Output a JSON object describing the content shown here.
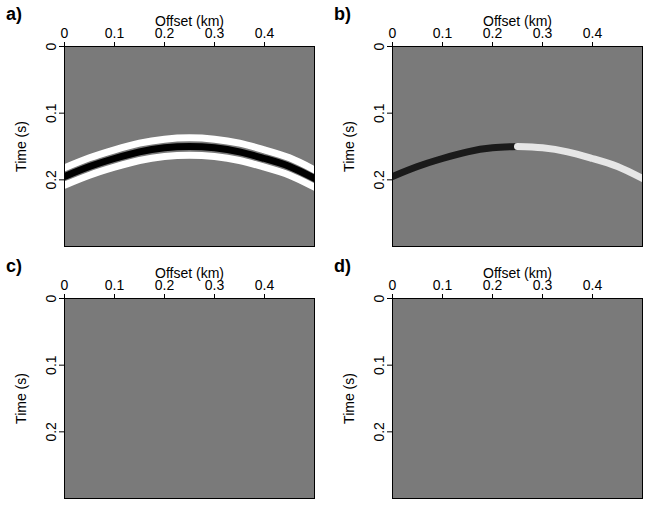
{
  "chart_data": [
    {
      "type": "line",
      "title": "a)",
      "xlabel": "Offset (km)",
      "ylabel": "Time (s)",
      "xlim": [
        0,
        0.5
      ],
      "ylim": [
        0,
        0.3
      ],
      "xticks": [
        0,
        0.1,
        0.2,
        0.3,
        0.4
      ],
      "yticks": [
        0,
        0.1,
        0.2
      ],
      "x": [
        0,
        0.05,
        0.1,
        0.15,
        0.2,
        0.25,
        0.3,
        0.35,
        0.4,
        0.45,
        0.5
      ],
      "series": [
        {
          "color": "#ffffff",
          "values": [
            0.182,
            0.167,
            0.155,
            0.145,
            0.139,
            0.137,
            0.139,
            0.145,
            0.155,
            0.167,
            0.185
          ]
        },
        {
          "color": "#000000",
          "values": [
            0.195,
            0.18,
            0.168,
            0.158,
            0.152,
            0.15,
            0.152,
            0.158,
            0.168,
            0.18,
            0.198
          ]
        },
        {
          "color": "#ffffff",
          "values": [
            0.208,
            0.193,
            0.181,
            0.171,
            0.165,
            0.163,
            0.165,
            0.171,
            0.181,
            0.193,
            0.211
          ]
        }
      ]
    },
    {
      "type": "line",
      "title": "b)",
      "xlabel": "Offset (km)",
      "ylabel": "Time (s)",
      "xlim": [
        0,
        0.5
      ],
      "ylim": [
        0,
        0.3
      ],
      "xticks": [
        0,
        0.1,
        0.2,
        0.3,
        0.4
      ],
      "yticks": [
        0,
        0.1,
        0.2
      ],
      "x": [
        0,
        0.05,
        0.1,
        0.15,
        0.2,
        0.25,
        0.3,
        0.35,
        0.4,
        0.45,
        0.5
      ],
      "series": [
        {
          "color": "#1a1a1a",
          "values": [
            0.195,
            0.18,
            0.168,
            0.158,
            0.152,
            0.15,
            null,
            null,
            null,
            null,
            null
          ]
        },
        {
          "color": "#e6e6e6",
          "values": [
            null,
            null,
            null,
            null,
            null,
            0.15,
            0.152,
            0.158,
            0.168,
            0.18,
            0.198
          ]
        }
      ]
    },
    {
      "type": "line",
      "title": "c)",
      "xlabel": "Offset (km)",
      "ylabel": "Time (s)",
      "xlim": [
        0,
        0.5
      ],
      "ylim": [
        0,
        0.3
      ],
      "xticks": [
        0,
        0.1,
        0.2,
        0.3,
        0.4
      ],
      "yticks": [
        0,
        0.1,
        0.2
      ],
      "x": [],
      "series": []
    },
    {
      "type": "line",
      "title": "d)",
      "xlabel": "Offset (km)",
      "ylabel": "Time (s)",
      "xlim": [
        0,
        0.5
      ],
      "ylim": [
        0,
        0.3
      ],
      "xticks": [
        0,
        0.1,
        0.2,
        0.3,
        0.4
      ],
      "yticks": [
        0,
        0.1,
        0.2
      ],
      "x": [],
      "series": []
    }
  ]
}
